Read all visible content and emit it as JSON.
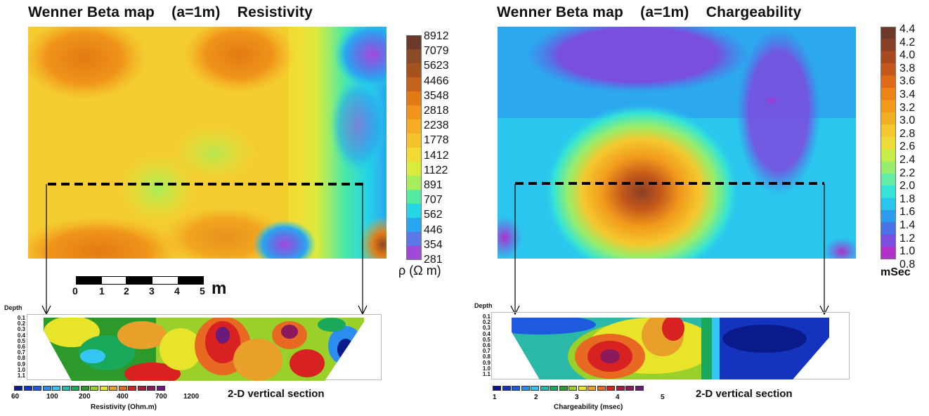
{
  "left": {
    "title": "Wenner Beta map    (a=1m)    Resistivity",
    "colorbar": {
      "labels": [
        "8912",
        "7079",
        "5623",
        "4466",
        "3548",
        "2818",
        "2238",
        "1778",
        "1412",
        "1122",
        "891",
        "707",
        "562",
        "446",
        "354",
        "281"
      ],
      "colors": [
        "#6b3a2a",
        "#8a4a26",
        "#a6521c",
        "#c4611a",
        "#e17a14",
        "#f0941a",
        "#f5ad24",
        "#f6c22c",
        "#f2dc34",
        "#d8ec3e",
        "#a6ee5c",
        "#54eaa0",
        "#24d6e6",
        "#2aa6ee",
        "#5a78e8",
        "#a24ad8"
      ],
      "unit_symbol": "ρ (Ω m)"
    },
    "scale_bar": {
      "labels": [
        "0",
        "1",
        "2",
        "3",
        "4",
        "5"
      ],
      "unit": "m"
    },
    "section": {
      "depth_title": "Depth",
      "depths": [
        "0.1",
        "0.2",
        "0.3",
        "0.4",
        "0.5",
        "0.6",
        "0.7",
        "0.8",
        "0.9",
        "1.0",
        "1.1"
      ],
      "caption": "2-D vertical section",
      "palette_labels": [
        "60",
        "100",
        "200",
        "400",
        "700",
        "1200"
      ],
      "palette_title": "Resistivity (Ohm.m)",
      "palette_colors": [
        "#0a1a8a",
        "#1434c0",
        "#1e5ae0",
        "#2c8cf0",
        "#36c6f6",
        "#2ab8a8",
        "#1aa85a",
        "#2c9a2a",
        "#9ad02a",
        "#e8e42a",
        "#e8a02a",
        "#e86a22",
        "#d82222",
        "#a81a3a",
        "#8a1a5a",
        "#6a1a7a"
      ]
    }
  },
  "right": {
    "title": "Wenner Beta map    (a=1m)    Chargeability",
    "colorbar": {
      "labels": [
        "4.4",
        "4.2",
        "4.0",
        "3.8",
        "3.6",
        "3.4",
        "3.2",
        "3.0",
        "2.8",
        "2.6",
        "2.4",
        "2.2",
        "2.0",
        "1.8",
        "1.6",
        "1.4",
        "1.2",
        "1.0",
        "0.8"
      ],
      "colors": [
        "#6b3a2a",
        "#8a4026",
        "#a84a1e",
        "#c4581a",
        "#e06a16",
        "#ee8418",
        "#f29a1c",
        "#f4b024",
        "#f4c82e",
        "#eedc36",
        "#c8ec48",
        "#98ee6a",
        "#62eca6",
        "#34e4d6",
        "#2ac6ee",
        "#2e9cee",
        "#4a72e6",
        "#7a4ee0",
        "#b030c8"
      ],
      "unit": "mSec"
    },
    "section": {
      "depth_title": "Depth",
      "depths": [
        "0.1",
        "0.2",
        "0.3",
        "0.4",
        "0.5",
        "0.6",
        "0.7",
        "0.8",
        "0.9",
        "1.0",
        "1.1"
      ],
      "caption": "2-D vertical section",
      "palette_labels": [
        "1",
        "2",
        "3",
        "4",
        "5"
      ],
      "palette_title": "Chargeability (msec)",
      "palette_colors": [
        "#0a1a8a",
        "#1434c0",
        "#1e5ae0",
        "#2c8cf0",
        "#36c6f6",
        "#2ab8a8",
        "#1aa85a",
        "#2c9a2a",
        "#9ad02a",
        "#e8e42a",
        "#e8a02a",
        "#e86a22",
        "#d82222",
        "#a81a3a",
        "#8a1a5a",
        "#6a1a7a"
      ]
    }
  }
}
